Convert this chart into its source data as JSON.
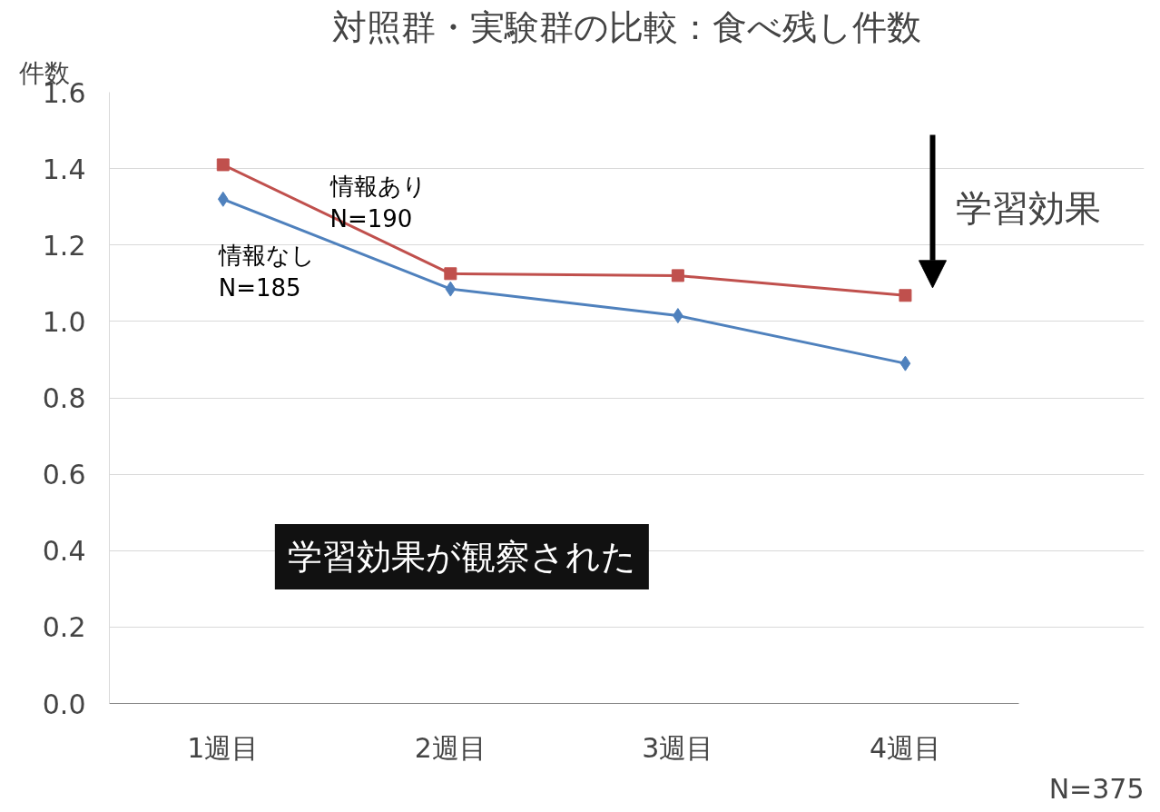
{
  "chart_data": {
    "type": "line",
    "title": "対照群・実験群の比較：食べ残し件数",
    "ylabel": "件数",
    "categories": [
      "1週目",
      "2週目",
      "3週目",
      "4週目"
    ],
    "series": [
      {
        "name": "情報なし\nN=185",
        "color": "#4f81bd",
        "marker": "diamond",
        "values": [
          1.32,
          1.085,
          1.015,
          0.89
        ]
      },
      {
        "name": "情報あり\nN=190",
        "color": "#c0504d",
        "marker": "square",
        "values": [
          1.41,
          1.125,
          1.12,
          1.068
        ]
      }
    ],
    "ylim": [
      0,
      1.6
    ],
    "yticks": [
      {
        "value": 0,
        "label": "0.0"
      },
      0.2,
      0.4,
      0.6,
      0.8,
      {
        "value": 1,
        "label": "1.0"
      },
      1.2,
      1.4,
      1.6
    ],
    "grid": "y",
    "legend": false,
    "line_style": "solid",
    "annotations": [
      "学習効果",
      "学習効果が観察された",
      "N=375"
    ]
  }
}
